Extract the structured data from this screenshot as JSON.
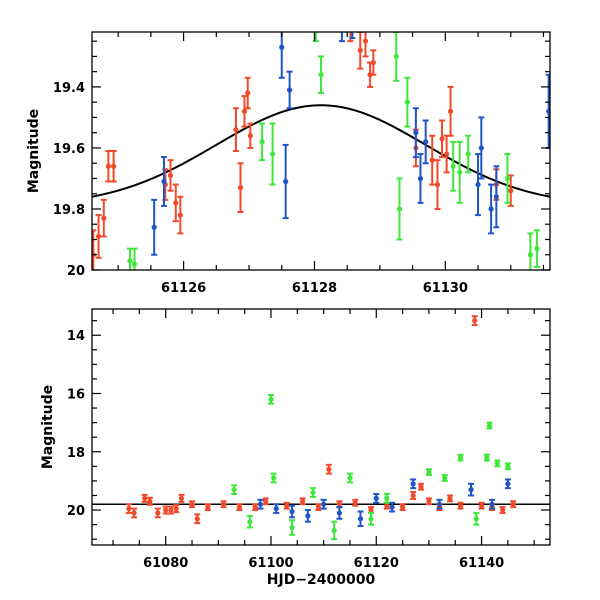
{
  "chart_data": [
    {
      "id": "top",
      "type": "scatter",
      "title": "",
      "xlabel": "",
      "ylabel": "Magnitude",
      "xlim": [
        61124.6,
        61131.6
      ],
      "ylim": [
        20.0,
        19.22
      ],
      "y_inverted": true,
      "x_ticks": [
        61126,
        61128,
        61130
      ],
      "x_tick_labels": [
        "61126",
        "61128",
        "61130"
      ],
      "y_ticks": [
        19.4,
        19.6,
        19.8,
        20.0
      ],
      "y_tick_labels": [
        "19.4",
        "19.6",
        "19.8",
        "20"
      ],
      "model_curve": {
        "peak_x": 61128.1,
        "peak_mag": 19.46,
        "base_mag": 19.79,
        "sigma_days": 1.6,
        "color": "#000000"
      },
      "series": [
        {
          "name": "red",
          "color": "#f04a2a",
          "points": [
            {
              "x": 61124.62,
              "y": 19.95,
              "err": 0.08
            },
            {
              "x": 61124.7,
              "y": 19.89,
              "err": 0.07
            },
            {
              "x": 61124.78,
              "y": 19.83,
              "err": 0.06
            },
            {
              "x": 61124.85,
              "y": 19.66,
              "err": 0.05
            },
            {
              "x": 61124.93,
              "y": 19.66,
              "err": 0.05
            },
            {
              "x": 61125.72,
              "y": 19.72,
              "err": 0.05
            },
            {
              "x": 61125.8,
              "y": 19.69,
              "err": 0.05
            },
            {
              "x": 61125.88,
              "y": 19.78,
              "err": 0.06
            },
            {
              "x": 61125.95,
              "y": 19.82,
              "err": 0.06
            },
            {
              "x": 61126.8,
              "y": 19.54,
              "err": 0.07
            },
            {
              "x": 61126.87,
              "y": 19.73,
              "err": 0.08
            },
            {
              "x": 61126.93,
              "y": 19.48,
              "err": 0.05
            },
            {
              "x": 61126.98,
              "y": 19.42,
              "err": 0.05
            },
            {
              "x": 61127.02,
              "y": 19.56,
              "err": 0.04
            },
            {
              "x": 61128.55,
              "y": 19.2,
              "err": 0.05
            },
            {
              "x": 61128.7,
              "y": 19.28,
              "err": 0.06
            },
            {
              "x": 61128.78,
              "y": 19.25,
              "err": 0.05
            },
            {
              "x": 61128.85,
              "y": 19.36,
              "err": 0.04
            },
            {
              "x": 61128.9,
              "y": 19.32,
              "err": 0.04
            },
            {
              "x": 61129.55,
              "y": 19.6,
              "err": 0.06
            },
            {
              "x": 61129.8,
              "y": 19.64,
              "err": 0.08
            },
            {
              "x": 61129.88,
              "y": 19.72,
              "err": 0.08
            },
            {
              "x": 61129.95,
              "y": 19.57,
              "err": 0.06
            },
            {
              "x": 61130.02,
              "y": 19.62,
              "err": 0.06
            },
            {
              "x": 61130.08,
              "y": 19.48,
              "err": 0.08
            },
            {
              "x": 61130.78,
              "y": 19.72,
              "err": 0.05
            },
            {
              "x": 61131.0,
              "y": 19.74,
              "err": 0.05
            }
          ]
        },
        {
          "name": "blue",
          "color": "#1f55c6",
          "points": [
            {
              "x": 61125.55,
              "y": 19.86,
              "err": 0.09
            },
            {
              "x": 61125.7,
              "y": 19.71,
              "err": 0.08
            },
            {
              "x": 61127.5,
              "y": 19.27,
              "err": 0.1
            },
            {
              "x": 61127.56,
              "y": 19.71,
              "err": 0.12
            },
            {
              "x": 61127.62,
              "y": 19.41,
              "err": 0.06
            },
            {
              "x": 61128.42,
              "y": 19.2,
              "err": 0.05
            },
            {
              "x": 61128.58,
              "y": 19.2,
              "err": 0.04
            },
            {
              "x": 61129.55,
              "y": 19.55,
              "err": 0.08
            },
            {
              "x": 61129.62,
              "y": 19.7,
              "err": 0.08
            },
            {
              "x": 61129.7,
              "y": 19.58,
              "err": 0.07
            },
            {
              "x": 61130.5,
              "y": 19.72,
              "err": 0.1
            },
            {
              "x": 61130.55,
              "y": 19.6,
              "err": 0.1
            },
            {
              "x": 61130.7,
              "y": 19.8,
              "err": 0.08
            },
            {
              "x": 61130.78,
              "y": 19.76,
              "err": 0.1
            },
            {
              "x": 61131.58,
              "y": 19.48,
              "err": 0.12
            }
          ]
        },
        {
          "name": "green",
          "color": "#3ee83a",
          "points": [
            {
              "x": 61125.18,
              "y": 19.97,
              "err": 0.04
            },
            {
              "x": 61125.25,
              "y": 19.98,
              "err": 0.05
            },
            {
              "x": 61127.2,
              "y": 19.58,
              "err": 0.06
            },
            {
              "x": 61127.36,
              "y": 19.62,
              "err": 0.1
            },
            {
              "x": 61128.02,
              "y": 19.2,
              "err": 0.05
            },
            {
              "x": 61128.1,
              "y": 19.36,
              "err": 0.06
            },
            {
              "x": 61129.25,
              "y": 19.3,
              "err": 0.08
            },
            {
              "x": 61129.3,
              "y": 19.8,
              "err": 0.1
            },
            {
              "x": 61129.42,
              "y": 19.45,
              "err": 0.08
            },
            {
              "x": 61130.12,
              "y": 19.66,
              "err": 0.08
            },
            {
              "x": 61130.22,
              "y": 19.68,
              "err": 0.1
            },
            {
              "x": 61130.35,
              "y": 19.62,
              "err": 0.06
            },
            {
              "x": 61130.95,
              "y": 19.7,
              "err": 0.08
            },
            {
              "x": 61131.3,
              "y": 19.95,
              "err": 0.07
            },
            {
              "x": 61131.4,
              "y": 19.93,
              "err": 0.06
            }
          ]
        }
      ]
    },
    {
      "id": "bottom",
      "type": "scatter",
      "title": "",
      "xlabel": "HJD−2400000",
      "ylabel": "Magnitude",
      "xlim": [
        61066,
        61153
      ],
      "ylim": [
        21.2,
        13.1
      ],
      "y_inverted": true,
      "x_ticks": [
        61080,
        61100,
        61120,
        61140
      ],
      "x_tick_labels": [
        "61080",
        "61100",
        "61120",
        "61140"
      ],
      "y_ticks": [
        14,
        16,
        18,
        20
      ],
      "y_tick_labels": [
        "14",
        "16",
        "18",
        "20"
      ],
      "baseline_mag": 19.8,
      "series": [
        {
          "name": "red",
          "color": "#f04a2a",
          "points": [
            {
              "x": 61073,
              "y": 19.95,
              "err": 0.15
            },
            {
              "x": 61074,
              "y": 20.1,
              "err": 0.15
            },
            {
              "x": 61076,
              "y": 19.6,
              "err": 0.12
            },
            {
              "x": 61077,
              "y": 19.7,
              "err": 0.12
            },
            {
              "x": 61078.5,
              "y": 20.1,
              "err": 0.15
            },
            {
              "x": 61080,
              "y": 20.0,
              "err": 0.12
            },
            {
              "x": 61081,
              "y": 20.0,
              "err": 0.12
            },
            {
              "x": 61082,
              "y": 19.95,
              "err": 0.12
            },
            {
              "x": 61083,
              "y": 19.6,
              "err": 0.12
            },
            {
              "x": 61085,
              "y": 19.8,
              "err": 0.1
            },
            {
              "x": 61086,
              "y": 20.3,
              "err": 0.15
            },
            {
              "x": 61088,
              "y": 19.9,
              "err": 0.1
            },
            {
              "x": 61091,
              "y": 19.8,
              "err": 0.1
            },
            {
              "x": 61094,
              "y": 19.9,
              "err": 0.1
            },
            {
              "x": 61097,
              "y": 19.9,
              "err": 0.1
            },
            {
              "x": 61099,
              "y": 19.7,
              "err": 0.1
            },
            {
              "x": 61103,
              "y": 19.85,
              "err": 0.1
            },
            {
              "x": 61106,
              "y": 19.7,
              "err": 0.1
            },
            {
              "x": 61109,
              "y": 19.9,
              "err": 0.1
            },
            {
              "x": 61111,
              "y": 18.6,
              "err": 0.15
            },
            {
              "x": 61113,
              "y": 19.8,
              "err": 0.1
            },
            {
              "x": 61116,
              "y": 19.75,
              "err": 0.1
            },
            {
              "x": 61119,
              "y": 20.0,
              "err": 0.1
            },
            {
              "x": 61122,
              "y": 19.85,
              "err": 0.1
            },
            {
              "x": 61125,
              "y": 19.9,
              "err": 0.1
            },
            {
              "x": 61127,
              "y": 19.5,
              "err": 0.12
            },
            {
              "x": 61128.5,
              "y": 19.2,
              "err": 0.1
            },
            {
              "x": 61130,
              "y": 19.7,
              "err": 0.1
            },
            {
              "x": 61132,
              "y": 19.9,
              "err": 0.1
            },
            {
              "x": 61134,
              "y": 19.6,
              "err": 0.1
            },
            {
              "x": 61136,
              "y": 19.85,
              "err": 0.1
            },
            {
              "x": 61138.7,
              "y": 13.5,
              "err": 0.15
            },
            {
              "x": 61140,
              "y": 19.85,
              "err": 0.1
            },
            {
              "x": 61142,
              "y": 19.9,
              "err": 0.1
            },
            {
              "x": 61144,
              "y": 20.0,
              "err": 0.1
            },
            {
              "x": 61146,
              "y": 19.8,
              "err": 0.1
            }
          ]
        },
        {
          "name": "blue",
          "color": "#1f55c6",
          "points": [
            {
              "x": 61098,
              "y": 19.8,
              "err": 0.15
            },
            {
              "x": 61101,
              "y": 19.95,
              "err": 0.15
            },
            {
              "x": 61104,
              "y": 20.05,
              "err": 0.2
            },
            {
              "x": 61107,
              "y": 20.2,
              "err": 0.2
            },
            {
              "x": 61110,
              "y": 19.8,
              "err": 0.15
            },
            {
              "x": 61113,
              "y": 20.1,
              "err": 0.2
            },
            {
              "x": 61117,
              "y": 20.3,
              "err": 0.25
            },
            {
              "x": 61120,
              "y": 19.6,
              "err": 0.15
            },
            {
              "x": 61123,
              "y": 19.9,
              "err": 0.15
            },
            {
              "x": 61127,
              "y": 19.1,
              "err": 0.15
            },
            {
              "x": 61132,
              "y": 19.8,
              "err": 0.15
            },
            {
              "x": 61138,
              "y": 19.3,
              "err": 0.2
            },
            {
              "x": 61142,
              "y": 19.8,
              "err": 0.15
            },
            {
              "x": 61145,
              "y": 19.1,
              "err": 0.15
            }
          ]
        },
        {
          "name": "green",
          "color": "#3ee83a",
          "points": [
            {
              "x": 61093,
              "y": 19.3,
              "err": 0.15
            },
            {
              "x": 61096,
              "y": 20.4,
              "err": 0.2
            },
            {
              "x": 61100,
              "y": 16.2,
              "err": 0.15
            },
            {
              "x": 61100.5,
              "y": 18.9,
              "err": 0.15
            },
            {
              "x": 61104,
              "y": 20.6,
              "err": 0.25
            },
            {
              "x": 61108,
              "y": 19.4,
              "err": 0.15
            },
            {
              "x": 61112,
              "y": 20.7,
              "err": 0.3
            },
            {
              "x": 61115,
              "y": 18.9,
              "err": 0.15
            },
            {
              "x": 61119,
              "y": 20.3,
              "err": 0.2
            },
            {
              "x": 61122,
              "y": 19.6,
              "err": 0.15
            },
            {
              "x": 61130,
              "y": 18.7,
              "err": 0.1
            },
            {
              "x": 61133,
              "y": 18.9,
              "err": 0.1
            },
            {
              "x": 61136,
              "y": 18.2,
              "err": 0.1
            },
            {
              "x": 61139,
              "y": 20.3,
              "err": 0.2
            },
            {
              "x": 61141,
              "y": 18.2,
              "err": 0.1
            },
            {
              "x": 61141.5,
              "y": 17.1,
              "err": 0.1
            },
            {
              "x": 61143,
              "y": 18.4,
              "err": 0.1
            },
            {
              "x": 61145,
              "y": 18.5,
              "err": 0.1
            }
          ]
        }
      ]
    }
  ]
}
